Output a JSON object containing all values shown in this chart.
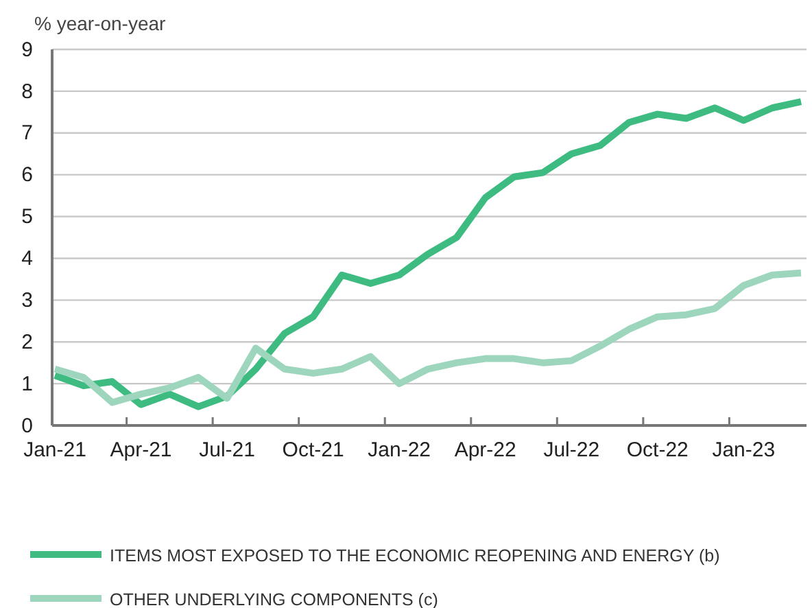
{
  "chart_data": {
    "type": "line",
    "ylabel": "% year-on-year",
    "categories": [
      "Jan-21",
      null,
      null,
      "Apr-21",
      null,
      null,
      "Jul-21",
      null,
      null,
      "Oct-21",
      null,
      null,
      "Jan-22",
      null,
      null,
      "Apr-22",
      null,
      null,
      "Jul-22",
      null,
      null,
      "Oct-22",
      null,
      null,
      "Jan-23",
      null,
      null
    ],
    "series": [
      {
        "name": "ITEMS MOST EXPOSED TO THE ECONOMIC REOPENING AND ENERGY (b)",
        "color": "#3dbb80",
        "values": [
          1.2,
          0.95,
          1.05,
          0.5,
          0.75,
          0.45,
          0.7,
          1.35,
          2.2,
          2.6,
          3.6,
          3.4,
          3.6,
          4.1,
          4.5,
          5.45,
          5.95,
          6.05,
          6.5,
          6.7,
          7.25,
          7.45,
          7.35,
          7.6,
          7.3,
          7.6,
          7.75
        ]
      },
      {
        "name": "OTHER UNDERLYING COMPONENTS (c)",
        "color": "#9dd6bd",
        "values": [
          1.35,
          1.15,
          0.55,
          0.75,
          0.9,
          1.15,
          0.65,
          1.85,
          1.35,
          1.25,
          1.35,
          1.65,
          1.0,
          1.35,
          1.5,
          1.6,
          1.6,
          1.5,
          1.55,
          1.9,
          2.3,
          2.6,
          2.65,
          2.8,
          3.35,
          3.6,
          3.65
        ]
      }
    ],
    "ylim": [
      0,
      9
    ],
    "yticks": [
      0,
      1,
      2,
      3,
      4,
      5,
      6,
      7,
      8,
      9
    ],
    "grid": "y",
    "legend": "bottom",
    "line_style": "solid"
  }
}
